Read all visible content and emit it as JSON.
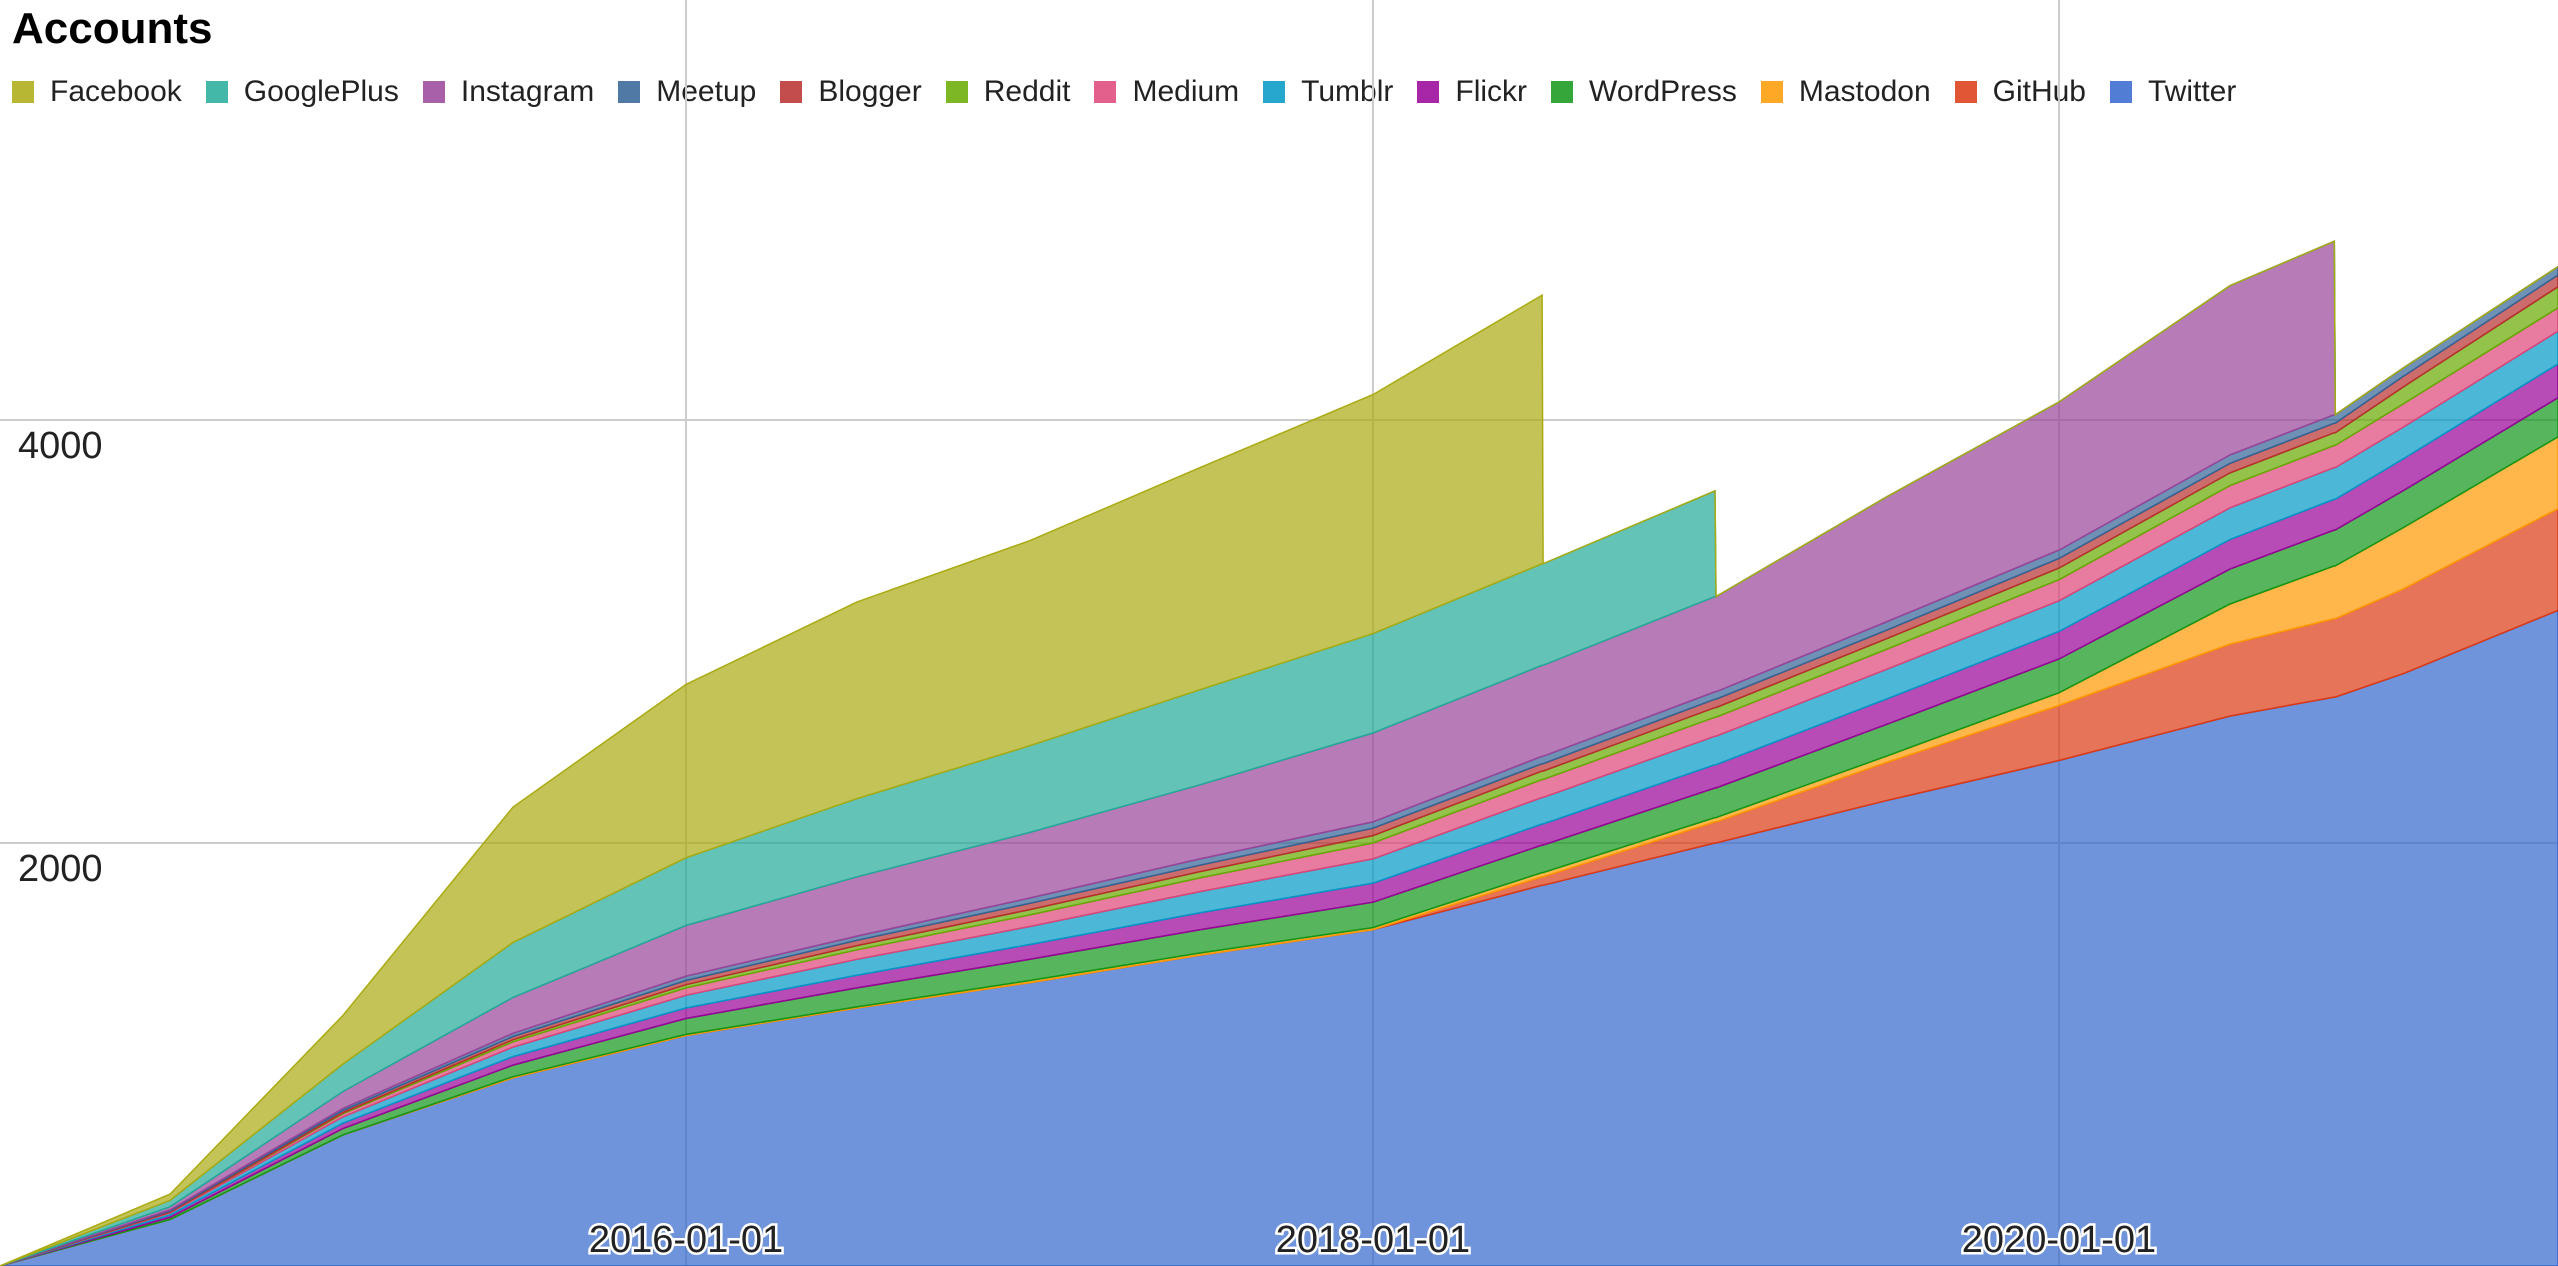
{
  "chart_data": {
    "type": "area",
    "stacked": true,
    "title": "Accounts",
    "xlabel": "",
    "ylabel": "",
    "x_tick_labels": [
      "2016-01-01",
      "2018-01-01",
      "2020-01-01"
    ],
    "x_range": [
      "2014-01-01",
      "2021-06-15"
    ],
    "y_ticks": [
      2000,
      4000
    ],
    "ylim": [
      0,
      6000
    ],
    "grid": true,
    "legend_position": "top-left",
    "x": [
      "2014-01-01",
      "2014-07-01",
      "2015-01-01",
      "2015-07-01",
      "2016-01-01",
      "2016-07-01",
      "2017-01-01",
      "2017-07-01",
      "2018-01-01",
      "2018-06-30",
      "2018-07-01",
      "2018-12-31",
      "2019-01-01",
      "2019-07-01",
      "2020-01-01",
      "2020-07-01",
      "2020-10-20",
      "2020-10-21",
      "2021-01-01",
      "2021-06-15"
    ],
    "series": [
      {
        "name": "Twitter",
        "color": "#3366cc",
        "values": [
          0,
          220,
          620,
          890,
          1090,
          1220,
          1340,
          1470,
          1590,
          1800,
          1800,
          2000,
          2000,
          2200,
          2390,
          2600,
          2690,
          2690,
          2800,
          3100
        ]
      },
      {
        "name": "GitHub",
        "color": "#dc3912",
        "values": [
          0,
          0,
          0,
          0,
          0,
          0,
          0,
          0,
          0,
          40,
          40,
          100,
          100,
          180,
          260,
          340,
          370,
          370,
          400,
          480
        ]
      },
      {
        "name": "Mastodon",
        "color": "#ff9900",
        "values": [
          0,
          0,
          0,
          5,
          5,
          5,
          10,
          10,
          10,
          20,
          20,
          20,
          20,
          30,
          60,
          190,
          250,
          250,
          290,
          340
        ]
      },
      {
        "name": "WordPress",
        "color": "#109618",
        "values": [
          0,
          10,
          30,
          55,
          75,
          90,
          100,
          110,
          120,
          130,
          130,
          140,
          140,
          150,
          160,
          165,
          170,
          170,
          175,
          185
        ]
      },
      {
        "name": "Flickr",
        "color": "#990099",
        "values": [
          0,
          10,
          25,
          40,
          50,
          60,
          70,
          80,
          90,
          100,
          100,
          110,
          110,
          120,
          130,
          140,
          145,
          145,
          150,
          160
        ]
      },
      {
        "name": "Tumblr",
        "color": "#0099c6",
        "values": [
          0,
          10,
          30,
          45,
          60,
          75,
          85,
          100,
          115,
          125,
          125,
          135,
          135,
          140,
          145,
          150,
          150,
          150,
          150,
          155
        ]
      },
      {
        "name": "Medium",
        "color": "#dd4477",
        "values": [
          0,
          5,
          15,
          25,
          35,
          45,
          55,
          65,
          75,
          85,
          85,
          90,
          90,
          95,
          100,
          105,
          105,
          105,
          110,
          110
        ]
      },
      {
        "name": "Reddit",
        "color": "#66aa00",
        "values": [
          0,
          0,
          5,
          10,
          15,
          20,
          25,
          30,
          35,
          40,
          40,
          45,
          45,
          50,
          55,
          60,
          60,
          60,
          80,
          100
        ]
      },
      {
        "name": "Blogger",
        "color": "#b82e2e",
        "values": [
          0,
          5,
          10,
          15,
          20,
          25,
          30,
          30,
          35,
          35,
          35,
          40,
          40,
          40,
          45,
          45,
          45,
          45,
          50,
          55
        ]
      },
      {
        "name": "Meetup",
        "color": "#316395",
        "values": [
          0,
          5,
          10,
          15,
          20,
          20,
          25,
          30,
          30,
          35,
          35,
          35,
          35,
          40,
          40,
          40,
          40,
          40,
          40,
          40
        ]
      },
      {
        "name": "Instagram",
        "color": "#994499",
        "values": [
          0,
          15,
          80,
          170,
          240,
          280,
          310,
          350,
          420,
          430,
          430,
          450,
          450,
          590,
          700,
          800,
          820,
          0,
          0,
          0
        ]
      },
      {
        "name": "GooglePlus",
        "color": "#22aa99",
        "values": [
          0,
          30,
          130,
          260,
          320,
          370,
          410,
          450,
          470,
          480,
          480,
          500,
          0,
          0,
          0,
          0,
          0,
          0,
          0,
          0
        ]
      },
      {
        "name": "Facebook",
        "color": "#aaaa11",
        "values": [
          0,
          30,
          230,
          640,
          820,
          930,
          970,
          1050,
          1130,
          1270,
          0,
          0,
          0,
          0,
          0,
          0,
          0,
          0,
          0,
          0
        ]
      }
    ]
  }
}
